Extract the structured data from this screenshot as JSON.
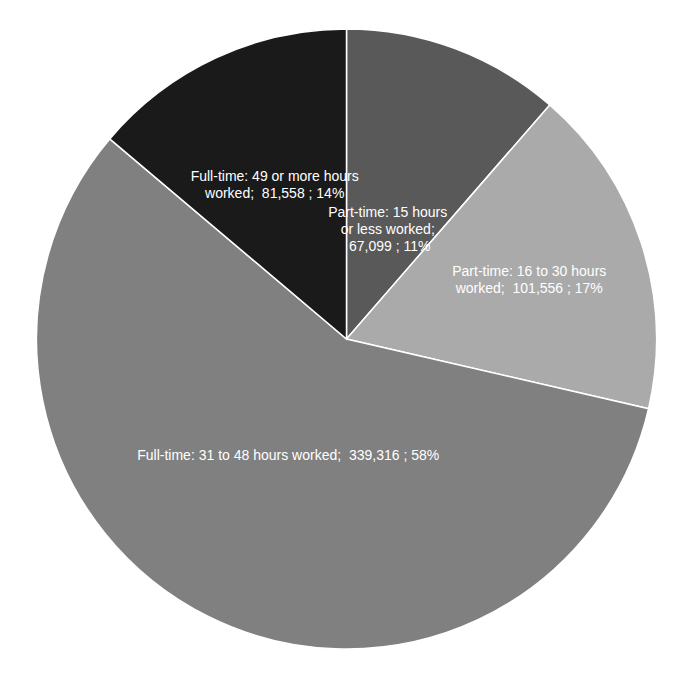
{
  "chart_data": {
    "type": "pie",
    "values": [
      67099,
      101556,
      339316,
      81558
    ],
    "value_labels": [
      "Part-time: 15 hours\nor less worked;\n 67,099 ; 11%",
      "Part-time: 16 to 30 hours\nworked;  101,556 ; 17%",
      "Full-time: 31 to 48 hours worked;  339,316 ; 58%",
      "Full-time: 49 or more hours\nworked;  81,558 ; 14%"
    ],
    "colors": [
      "#595959",
      "#aaaaaa",
      "#808080",
      "#1a1a1a"
    ],
    "data_labels": true
  }
}
